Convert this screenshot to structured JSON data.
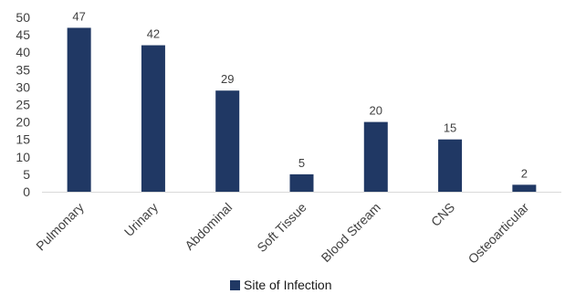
{
  "chart_data": {
    "type": "bar",
    "categories": [
      "Pulmonary",
      "Urinary",
      "Abdominal",
      "Soft Tissue",
      "Blood Stream",
      "CNS",
      "Osteoarticular"
    ],
    "series": [
      {
        "name": "Site of Infection",
        "values": [
          47,
          42,
          29,
          5,
          20,
          15,
          2
        ]
      }
    ],
    "title": "",
    "xlabel": "",
    "ylabel": "",
    "ylim": [
      0,
      50
    ],
    "yticks": [
      "0",
      "5",
      "10",
      "15",
      "20",
      "25",
      "30",
      "35",
      "40",
      "45",
      "50"
    ],
    "data_labels": [
      "47",
      "42",
      "29",
      "5",
      "20",
      "15",
      "2"
    ],
    "bar_color": "#203864",
    "grid": false,
    "legend_position": "bottom"
  },
  "legend": {
    "label": "Site of Infection",
    "color": "#203864"
  }
}
